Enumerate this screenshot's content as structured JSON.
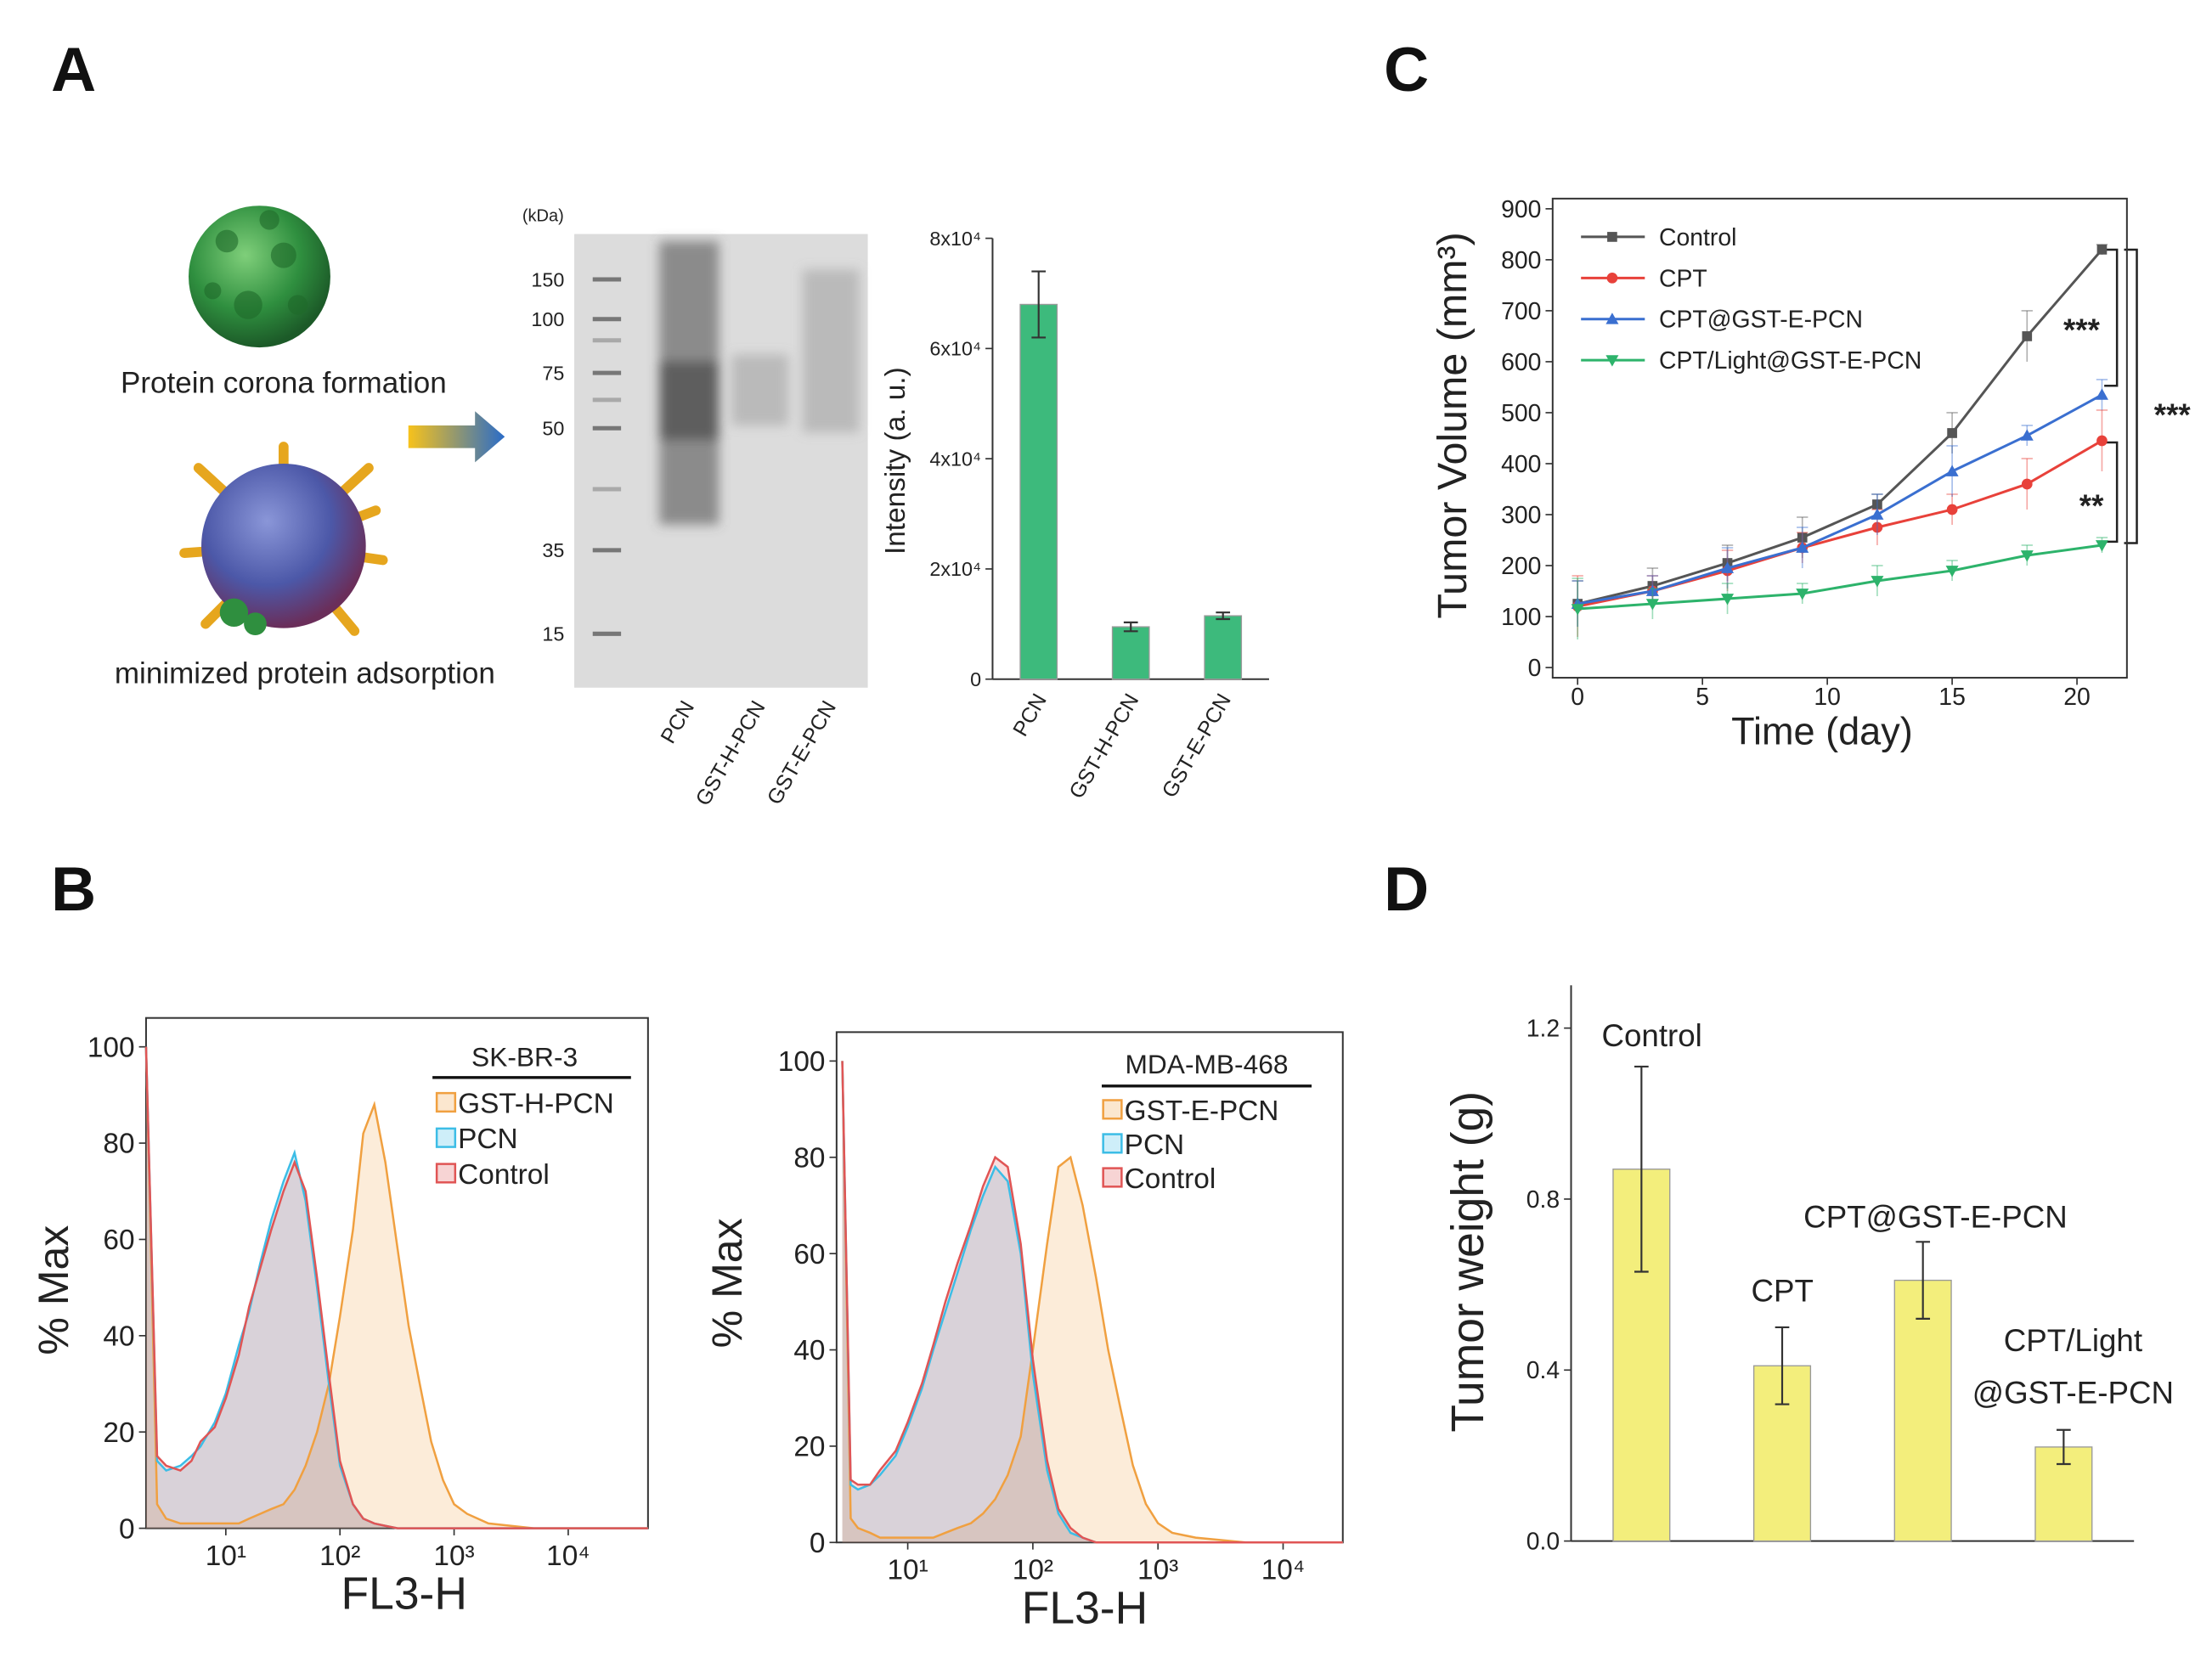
{
  "panels": {
    "a": "A",
    "b": "B",
    "c": "C",
    "d": "D"
  },
  "illustration": {
    "top": "Protein corona formation",
    "bottom": "minimized protein adsorption"
  },
  "gel": {
    "unit": "(kDa)",
    "markers": [
      150,
      100,
      75,
      50,
      35,
      15
    ],
    "lanes": [
      "PCN",
      "GST-H-PCN",
      "GST-E-PCN"
    ]
  },
  "chart_data": [
    {
      "type": "bar",
      "ylabel": "Intensity (a. u.)",
      "categories": [
        "PCN",
        "GST-H-PCN",
        "GST-E-PCN"
      ],
      "values": [
        68000,
        9500,
        11500
      ],
      "errors": [
        6000,
        800,
        600
      ],
      "color": "#3dba7c",
      "ylim": [
        0,
        80000
      ],
      "yticks": [
        {
          "value": 0,
          "label": "0"
        },
        {
          "value": 20000,
          "label": "2x10⁴"
        },
        {
          "value": 40000,
          "label": "4x10⁴"
        },
        {
          "value": 60000,
          "label": "6x10⁴"
        },
        {
          "value": 80000,
          "label": "8x10⁴"
        }
      ]
    },
    {
      "type": "line",
      "xlabel": "Time (day)",
      "ylabel": "Tumor Volume (mm³)",
      "x": [
        0,
        3,
        6,
        9,
        12,
        15,
        18,
        21
      ],
      "series": [
        {
          "name": "Control",
          "color": "#555555",
          "marker": "square",
          "values": [
            125,
            160,
            205,
            255,
            320,
            460,
            650,
            820
          ],
          "errors": [
            45,
            35,
            35,
            40,
            20,
            40,
            50,
            10
          ]
        },
        {
          "name": "CPT",
          "color": "#e8413a",
          "marker": "circle",
          "values": [
            120,
            150,
            190,
            235,
            275,
            310,
            360,
            445
          ],
          "errors": [
            60,
            30,
            40,
            30,
            35,
            30,
            50,
            60
          ]
        },
        {
          "name": "CPT@GST-E-PCN",
          "color": "#3a6fd0",
          "marker": "triangle-up",
          "values": [
            125,
            150,
            195,
            235,
            300,
            385,
            455,
            535
          ],
          "errors": [
            45,
            30,
            40,
            40,
            40,
            50,
            20,
            30
          ]
        },
        {
          "name": "CPT/Light@GST-E-PCN",
          "color": "#2db36b",
          "marker": "triangle-down",
          "values": [
            115,
            125,
            135,
            145,
            170,
            190,
            220,
            240
          ],
          "errors": [
            60,
            30,
            30,
            20,
            30,
            20,
            20,
            15
          ]
        }
      ],
      "annotations": [
        "***",
        "**",
        "***"
      ],
      "xlim": [
        -1,
        22
      ],
      "xticks": [
        0,
        5,
        10,
        15,
        20
      ],
      "ylim": [
        -20,
        920
      ],
      "yticks": [
        0,
        100,
        200,
        300,
        400,
        500,
        600,
        700,
        800,
        900
      ]
    },
    {
      "type": "area",
      "xlabel": "FL3-H",
      "ylabel": "% Max",
      "legend_title": "SK-BR-3",
      "xlog": true,
      "x": [
        2,
        2.5,
        3,
        4,
        5,
        6,
        8,
        10,
        13,
        16,
        20,
        25,
        32,
        40,
        50,
        63,
        80,
        100,
        130,
        160,
        200,
        250,
        320,
        400,
        500,
        630,
        800,
        1000,
        1300,
        2000,
        5000,
        50000
      ],
      "series": [
        {
          "name": "GST-H-PCN",
          "color": "#f0a040",
          "values": [
            100,
            5,
            2,
            1,
            1,
            1,
            1,
            1,
            1,
            2,
            3,
            4,
            5,
            8,
            13,
            20,
            30,
            44,
            62,
            82,
            88,
            76,
            58,
            42,
            30,
            18,
            10,
            5,
            3,
            1,
            0,
            0
          ]
        },
        {
          "name": "PCN",
          "color": "#3cbde6",
          "values": [
            100,
            14,
            12,
            13,
            15,
            17,
            22,
            28,
            38,
            45,
            55,
            64,
            72,
            78,
            68,
            50,
            30,
            13,
            5,
            2,
            1,
            0.5,
            0,
            0,
            0,
            0,
            0,
            0,
            0,
            0,
            0,
            0
          ]
        },
        {
          "name": "Control",
          "color": "#e05555",
          "values": [
            100,
            15,
            13,
            12,
            14,
            18,
            21,
            27,
            36,
            46,
            54,
            62,
            70,
            76,
            70,
            52,
            32,
            14,
            5,
            2,
            1,
            0.5,
            0,
            0,
            0,
            0,
            0,
            0,
            0,
            0,
            0,
            0
          ]
        }
      ],
      "xlim": [
        2,
        50000
      ],
      "xticks": [
        {
          "value": 10,
          "label": "10¹"
        },
        {
          "value": 100,
          "label": "10²"
        },
        {
          "value": 1000,
          "label": "10³"
        },
        {
          "value": 10000,
          "label": "10⁴"
        }
      ],
      "ylim": [
        0,
        106
      ],
      "yticks": [
        0,
        20,
        40,
        60,
        80,
        100
      ]
    },
    {
      "type": "area",
      "xlabel": "FL3-H",
      "ylabel": "% Max",
      "legend_title": "MDA-MB-468",
      "xlog": true,
      "x": [
        3,
        3.5,
        4,
        5,
        6,
        8,
        10,
        13,
        16,
        20,
        25,
        32,
        40,
        50,
        63,
        80,
        100,
        130,
        160,
        200,
        250,
        320,
        400,
        500,
        630,
        800,
        1000,
        1300,
        2000,
        5000,
        30000
      ],
      "series": [
        {
          "name": "GST-E-PCN",
          "color": "#f0a040",
          "values": [
            100,
            5,
            3,
            2,
            1,
            1,
            1,
            1,
            1,
            2,
            3,
            4,
            6,
            9,
            14,
            22,
            40,
            62,
            78,
            80,
            70,
            55,
            40,
            28,
            16,
            8,
            4,
            2,
            1,
            0,
            0
          ]
        },
        {
          "name": "PCN",
          "color": "#3cbde6",
          "values": [
            100,
            12,
            11,
            12,
            14,
            18,
            24,
            32,
            40,
            48,
            56,
            65,
            72,
            78,
            75,
            60,
            35,
            15,
            6,
            2,
            1,
            0,
            0,
            0,
            0,
            0,
            0,
            0,
            0,
            0,
            0
          ]
        },
        {
          "name": "Control",
          "color": "#e05555",
          "values": [
            100,
            13,
            12,
            12,
            15,
            19,
            25,
            33,
            41,
            50,
            58,
            66,
            74,
            80,
            78,
            62,
            38,
            17,
            7,
            3,
            1,
            0,
            0,
            0,
            0,
            0,
            0,
            0,
            0,
            0,
            0
          ]
        }
      ],
      "xlim": [
        2.7,
        30000
      ],
      "xticks": [
        {
          "value": 10,
          "label": "10¹"
        },
        {
          "value": 100,
          "label": "10²"
        },
        {
          "value": 1000,
          "label": "10³"
        },
        {
          "value": 10000,
          "label": "10⁴"
        }
      ],
      "ylim": [
        0,
        106
      ],
      "yticks": [
        0,
        20,
        40,
        60,
        80,
        100
      ]
    },
    {
      "type": "bar",
      "ylabel": "Tumor weight (g)",
      "categories": [
        [
          "Control"
        ],
        [
          "CPT"
        ],
        [
          "CPT@GST-E-PCN"
        ],
        [
          "CPT/Light",
          "@GST-E-PCN"
        ]
      ],
      "values": [
        0.87,
        0.41,
        0.61,
        0.22
      ],
      "errors": [
        0.24,
        0.09,
        0.09,
        0.04
      ],
      "color": "#f3ee7c",
      "ylim": [
        0,
        1.3
      ],
      "yticks": [
        {
          "value": 0,
          "label": "0.0"
        },
        0.4,
        0.8,
        1.2
      ]
    }
  ]
}
